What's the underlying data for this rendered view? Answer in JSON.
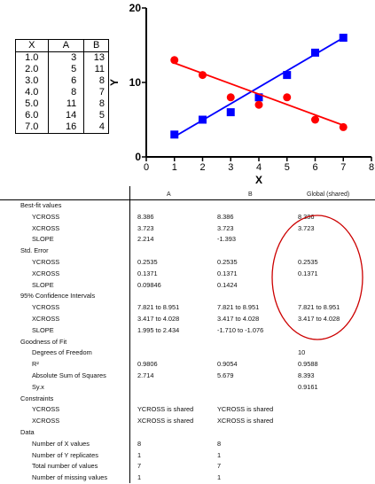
{
  "data_table": {
    "headers": [
      "X",
      "A",
      "B"
    ],
    "rows": [
      [
        "1.0",
        "3",
        "13"
      ],
      [
        "2.0",
        "5",
        "11"
      ],
      [
        "3.0",
        "6",
        "8"
      ],
      [
        "4.0",
        "8",
        "7"
      ],
      [
        "5.0",
        "11",
        "8"
      ],
      [
        "6.0",
        "14",
        "5"
      ],
      [
        "7.0",
        "16",
        "4"
      ]
    ]
  },
  "chart_data": {
    "type": "scatter",
    "xlabel": "X",
    "ylabel": "Y",
    "xlim": [
      0,
      8
    ],
    "ylim": [
      0,
      20
    ],
    "xticks": [
      "0",
      "1",
      "2",
      "3",
      "4",
      "5",
      "6",
      "7",
      "8"
    ],
    "yticks": [
      "0",
      "10",
      "20"
    ],
    "grid": false,
    "x": [
      1,
      2,
      3,
      4,
      5,
      6,
      7
    ],
    "series": [
      {
        "values": [
          3,
          5,
          6,
          8,
          11,
          14,
          16
        ],
        "marker": "square",
        "color": "#0000ff",
        "fit": {
          "slope": 2.214,
          "intercept": 0.5
        }
      },
      {
        "values": [
          13,
          11,
          8,
          7,
          8,
          5,
          4
        ],
        "marker": "circle",
        "color": "#ff0000",
        "fit": {
          "slope": -1.393,
          "intercept": 14.0
        }
      }
    ]
  },
  "results": {
    "headers": [
      "A",
      "B",
      "Global (shared)"
    ],
    "rows": [
      {
        "label": "Best-fit values",
        "level": 0,
        "a": "",
        "b": "",
        "g": ""
      },
      {
        "label": "YCROSS",
        "level": 1,
        "a": "8.386",
        "b": "8.386",
        "g": "8.386"
      },
      {
        "label": "XCROSS",
        "level": 1,
        "a": "3.723",
        "b": "3.723",
        "g": "3.723"
      },
      {
        "label": "SLOPE",
        "level": 1,
        "a": "2.214",
        "b": "-1.393",
        "g": ""
      },
      {
        "label": "Std. Error",
        "level": 0,
        "a": "",
        "b": "",
        "g": ""
      },
      {
        "label": "YCROSS",
        "level": 1,
        "a": "0.2535",
        "b": "0.2535",
        "g": "0.2535"
      },
      {
        "label": "XCROSS",
        "level": 1,
        "a": "0.1371",
        "b": "0.1371",
        "g": "0.1371"
      },
      {
        "label": "SLOPE",
        "level": 1,
        "a": "0.09846",
        "b": "0.1424",
        "g": ""
      },
      {
        "label": "95% Confidence Intervals",
        "level": 0,
        "a": "",
        "b": "",
        "g": ""
      },
      {
        "label": "YCROSS",
        "level": 1,
        "a": "7.821 to 8.951",
        "b": "7.821 to 8.951",
        "g": "7.821 to 8.951"
      },
      {
        "label": "XCROSS",
        "level": 1,
        "a": "3.417 to 4.028",
        "b": "3.417 to 4.028",
        "g": "3.417 to 4.028"
      },
      {
        "label": "SLOPE",
        "level": 1,
        "a": "1.995 to 2.434",
        "b": "-1.710 to -1.076",
        "g": ""
      },
      {
        "label": "Goodness of Fit",
        "level": 0,
        "a": "",
        "b": "",
        "g": ""
      },
      {
        "label": "Degrees of Freedom",
        "level": 1,
        "a": "",
        "b": "",
        "g": "10"
      },
      {
        "label": "R²",
        "level": 1,
        "a": "0.9806",
        "b": "0.9054",
        "g": "0.9588"
      },
      {
        "label": "Absolute Sum of Squares",
        "level": 1,
        "a": "2.714",
        "b": "5.679",
        "g": "8.393"
      },
      {
        "label": "Sy.x",
        "level": 1,
        "a": "",
        "b": "",
        "g": "0.9161"
      },
      {
        "label": "Constraints",
        "level": 0,
        "a": "",
        "b": "",
        "g": ""
      },
      {
        "label": "YCROSS",
        "level": 1,
        "a": "YCROSS is shared",
        "b": "YCROSS is shared",
        "g": ""
      },
      {
        "label": "XCROSS",
        "level": 1,
        "a": "XCROSS is shared",
        "b": "XCROSS is shared",
        "g": ""
      },
      {
        "label": "Data",
        "level": 0,
        "a": "",
        "b": "",
        "g": ""
      },
      {
        "label": "Number of X values",
        "level": 1,
        "a": "8",
        "b": "8",
        "g": ""
      },
      {
        "label": "Number of Y replicates",
        "level": 1,
        "a": "1",
        "b": "1",
        "g": ""
      },
      {
        "label": "Total number of values",
        "level": 1,
        "a": "7",
        "b": "7",
        "g": ""
      },
      {
        "label": "Number of missing values",
        "level": 1,
        "a": "1",
        "b": "1",
        "g": ""
      }
    ]
  },
  "annotation": {
    "color": "#cc0000"
  }
}
